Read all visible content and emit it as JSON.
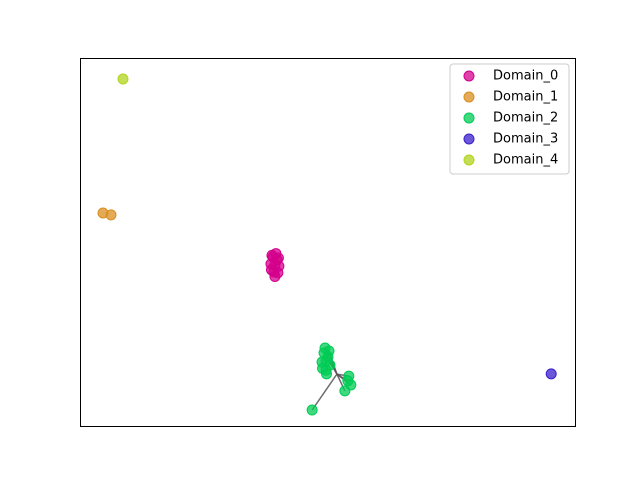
{
  "chart_data": {
    "type": "scatter",
    "xlim": [
      0,
      100
    ],
    "ylim": [
      0,
      100
    ],
    "legend": "upper right",
    "series": [
      {
        "name": "Domain_0",
        "color": "#d4008c",
        "x": [
          39.3,
          38.9,
          39.7,
          38.5,
          40.1,
          39.1,
          39.5,
          38.7,
          39.9,
          39.3,
          38.6,
          40.0
        ],
        "y": [
          43.9,
          46.1,
          45.3,
          44.2,
          43.6,
          42.0,
          47.0,
          46.5,
          41.8,
          40.8,
          42.6,
          45.8
        ]
      },
      {
        "name": "Domain_1",
        "color": "#d98f20",
        "x": [
          4.64,
          6.25
        ],
        "y": [
          58.0,
          57.5
        ]
      },
      {
        "name": "Domain_2",
        "color": "#00cc55",
        "x": [
          49.6,
          49.2,
          50.0,
          48.8,
          50.4,
          49.6,
          49.4,
          48.9,
          50.2,
          49.7,
          54.2,
          54.6,
          54.0,
          53.4,
          46.8
        ],
        "y": [
          17.9,
          20.1,
          19.0,
          17.6,
          16.8,
          15.4,
          21.4,
          15.9,
          20.6,
          14.4,
          13.8,
          11.4,
          12.5,
          9.8,
          4.6
        ]
      },
      {
        "name": "Domain_3",
        "color": "#3b1fcc",
        "x": [
          95.0
        ],
        "y": [
          14.4
        ]
      },
      {
        "name": "Domain_4",
        "color": "#b0d41c",
        "x": [
          8.67
        ],
        "y": [
          94.3
        ]
      }
    ]
  }
}
